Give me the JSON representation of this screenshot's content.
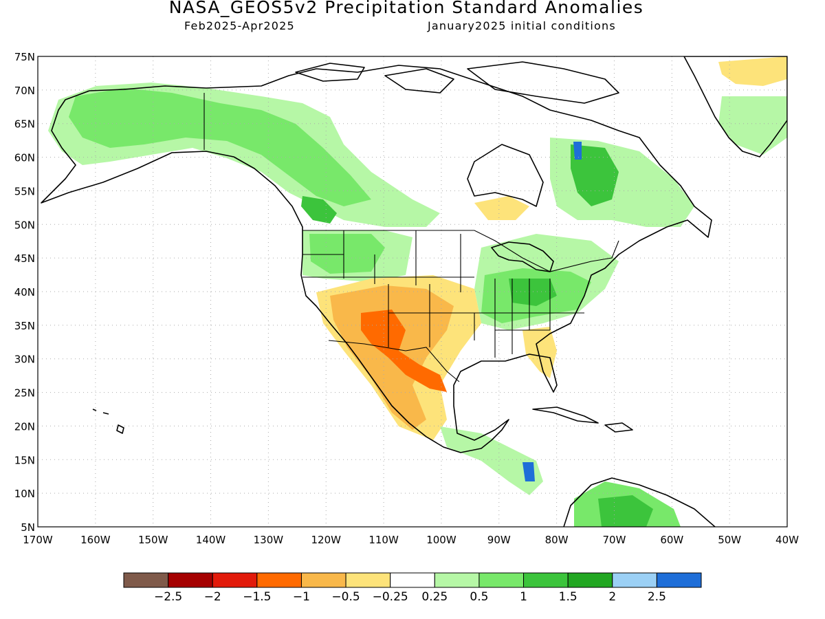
{
  "title": "NASA_GEOS5v2 Precipitation Standard Anomalies",
  "period": "Feb2025-Apr2025",
  "initial_conditions": "January2025 initial conditions",
  "map": {
    "lon_range": [
      -170,
      -40
    ],
    "lat_range": [
      5,
      75
    ],
    "lat_labels": [
      "75N",
      "70N",
      "65N",
      "60N",
      "55N",
      "50N",
      "45N",
      "40N",
      "35N",
      "30N",
      "25N",
      "20N",
      "15N",
      "10N",
      "5N"
    ],
    "lon_labels": [
      "170W",
      "160W",
      "150W",
      "140W",
      "130W",
      "120W",
      "110W",
      "100W",
      "90W",
      "80W",
      "70W",
      "60W",
      "50W",
      "40W"
    ]
  },
  "colorbar": {
    "colors": [
      "#7f5a4a",
      "#a50000",
      "#e21a0a",
      "#ff6a00",
      "#f9b84a",
      "#fde37a",
      "#ffffff",
      "#b6f7a6",
      "#78e86a",
      "#3cc43c",
      "#22a722",
      "#9bd0f5",
      "#1e6ed8"
    ],
    "labels": [
      "-2.5",
      "-2",
      "-1.5",
      "-1",
      "-0.5",
      "-0.25",
      "0.25",
      "0.5",
      "1",
      "1.5",
      "2",
      "2.5"
    ]
  },
  "regions": [
    {
      "name": "alaska-yukon-wet",
      "category": "0.5-1",
      "color": "#78e86a"
    },
    {
      "name": "western-canada-wet",
      "category": "0.5-1",
      "color": "#78e86a"
    },
    {
      "name": "quebec-labrador-wet",
      "category": "1-1.5",
      "color": "#3cc43c"
    },
    {
      "name": "ohio-valley-wet",
      "category": "1-1.5",
      "color": "#3cc43c"
    },
    {
      "name": "southwest-us-dry",
      "category": "-1 to -0.5",
      "color": "#f9b84a"
    },
    {
      "name": "northern-mexico-dry",
      "category": "-1.5 to -1",
      "color": "#ff6a00"
    },
    {
      "name": "southeast-us-dry",
      "category": "-0.5 to -0.25",
      "color": "#fde37a"
    },
    {
      "name": "greenland-dry",
      "category": "-0.5 to -0.25",
      "color": "#fde37a"
    },
    {
      "name": "northern-south-america-wet",
      "category": "1-1.5",
      "color": "#3cc43c"
    }
  ]
}
